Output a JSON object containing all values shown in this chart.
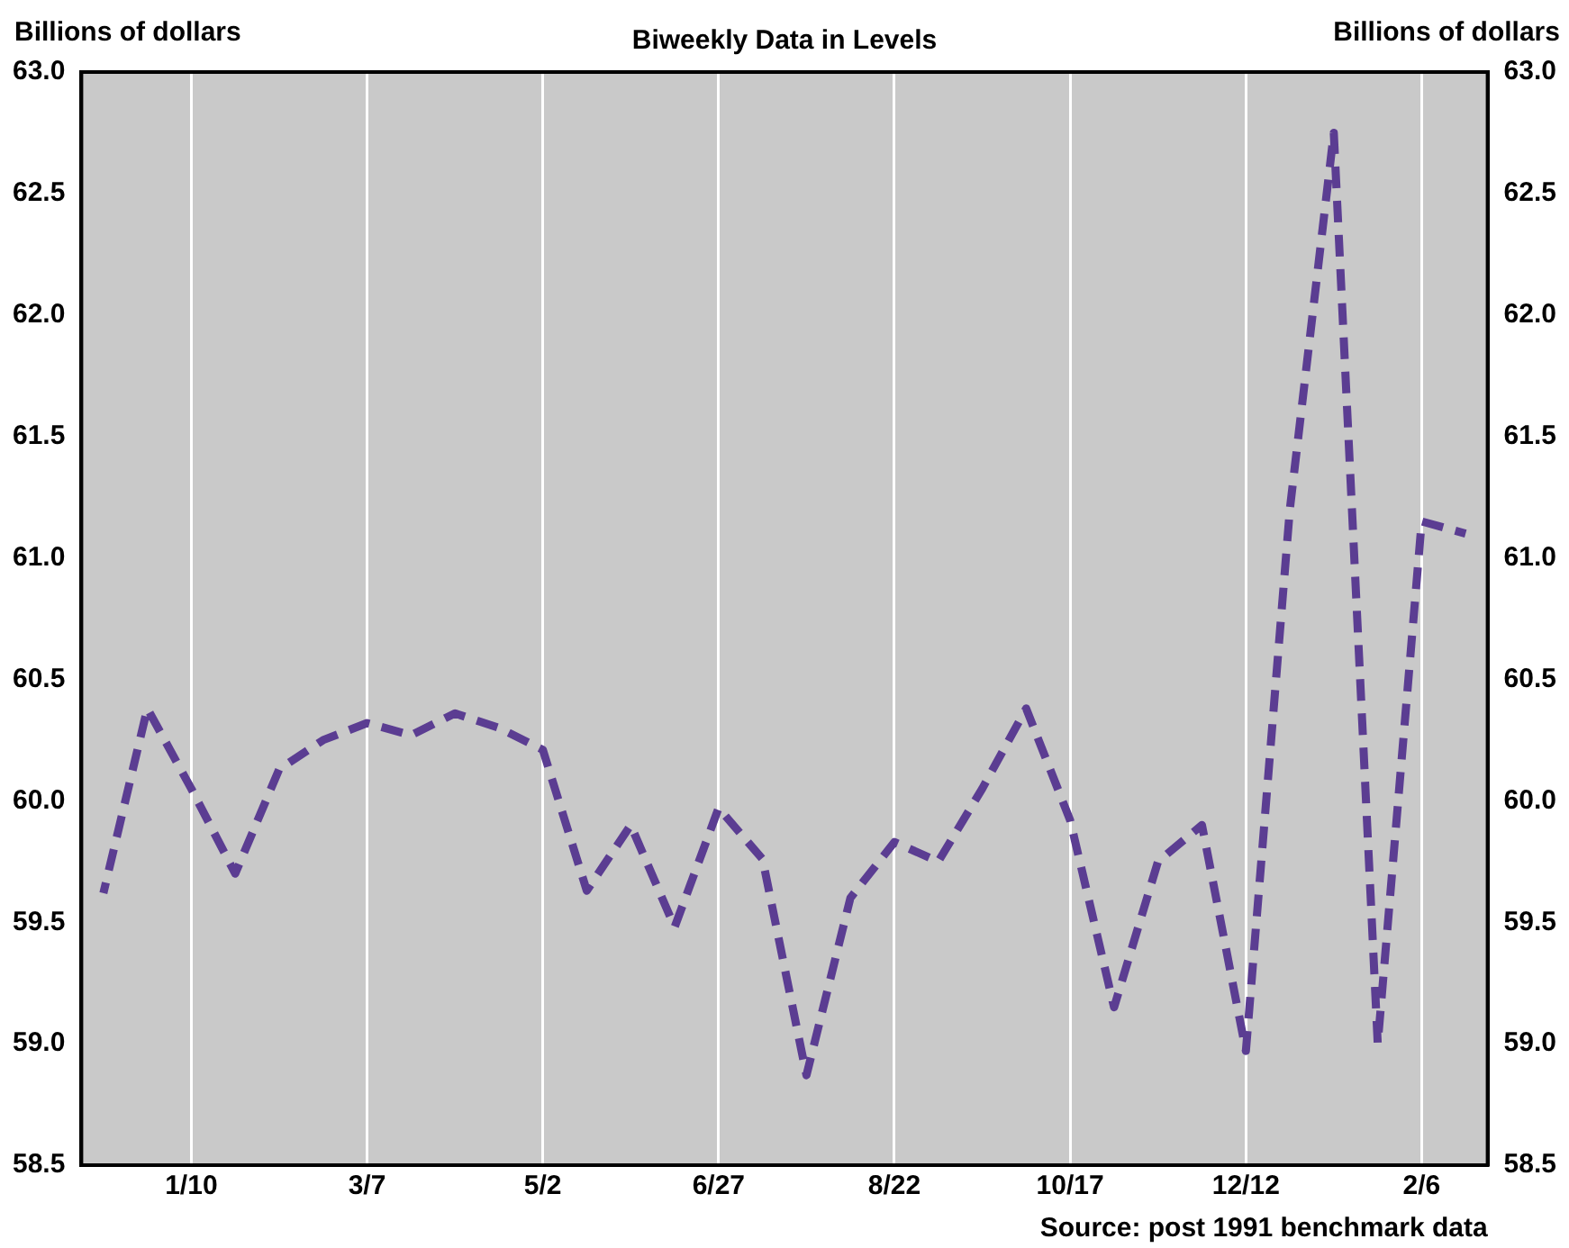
{
  "chart_data": {
    "type": "line",
    "title": "Biweekly Data in Levels",
    "ylabel": "Billions of dollars",
    "y2label": "Billions of dollars",
    "annotations": [
      "Source: post 1991 benchmark data"
    ],
    "categories": [
      null,
      null,
      "1/10",
      null,
      null,
      null,
      "3/7",
      null,
      null,
      null,
      "5/2",
      null,
      null,
      null,
      "6/27",
      null,
      null,
      null,
      "8/22",
      null,
      null,
      null,
      "10/17",
      null,
      null,
      null,
      "12/12",
      null,
      null,
      null,
      "2/6",
      null
    ],
    "series": [
      {
        "color": "#5b3d92",
        "values": [
          59.62,
          60.38,
          60.05,
          59.7,
          60.13,
          60.25,
          60.32,
          60.27,
          60.36,
          60.3,
          60.21,
          59.63,
          59.9,
          59.48,
          59.97,
          59.76,
          58.87,
          59.6,
          59.83,
          59.75,
          60.05,
          60.38,
          59.92,
          59.15,
          59.75,
          59.9,
          58.97,
          61.2,
          62.75,
          59.0,
          61.15,
          61.1
        ]
      }
    ],
    "ylim": [
      58.5,
      63.0
    ],
    "yticks": [
      {
        "value": 58.5,
        "label": "58.5"
      },
      {
        "value": 59,
        "label": "59.0"
      },
      {
        "value": 59.5,
        "label": "59.5"
      },
      {
        "value": 60,
        "label": "60.0"
      },
      {
        "value": 60.5,
        "label": "60.5"
      },
      {
        "value": 61,
        "label": "61.0"
      },
      {
        "value": 61.5,
        "label": "61.5"
      },
      {
        "value": 62,
        "label": "62.0"
      },
      {
        "value": 62.5,
        "label": "62.5"
      },
      {
        "value": 63,
        "label": "63.0"
      }
    ],
    "y2lim": [
      58.5,
      63.0
    ],
    "y2ticks": [
      {
        "value": 58.5,
        "label": "58.5"
      },
      {
        "value": 59,
        "label": "59.0"
      },
      {
        "value": 59.5,
        "label": "59.5"
      },
      {
        "value": 60,
        "label": "60.0"
      },
      {
        "value": 60.5,
        "label": "60.5"
      },
      {
        "value": 61,
        "label": "61.0"
      },
      {
        "value": 61.5,
        "label": "61.5"
      },
      {
        "value": 62,
        "label": "62.0"
      },
      {
        "value": 62.5,
        "label": "62.5"
      },
      {
        "value": 63,
        "label": "63.0"
      }
    ],
    "grid": "x",
    "legend": false,
    "marker": "none",
    "line_style": "dashed"
  }
}
